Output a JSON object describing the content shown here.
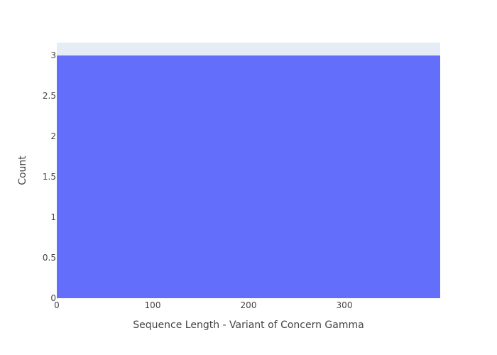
{
  "chart_data": {
    "type": "bar",
    "title": "",
    "xlabel": "Sequence Length - Variant of Concern Gamma",
    "ylabel": "Count",
    "xlim": [
      0,
      400
    ],
    "ylim": [
      0,
      3.16
    ],
    "x_ticks": [
      0,
      100,
      200,
      300
    ],
    "y_ticks": [
      0,
      0.5,
      1,
      1.5,
      2,
      2.5,
      3
    ],
    "x_tick_labels": [
      "0",
      "100",
      "200",
      "300"
    ],
    "y_tick_labels": [
      "0",
      "0.5",
      "1",
      "1.5",
      "2",
      "2.5",
      "3"
    ],
    "bins": [
      {
        "x0": 0,
        "x1": 400,
        "count": 3
      }
    ],
    "grid": false,
    "legend": "none",
    "colors": {
      "plot_background": "#e5ecf6",
      "bar": "#636efa",
      "text": "#444444"
    }
  }
}
